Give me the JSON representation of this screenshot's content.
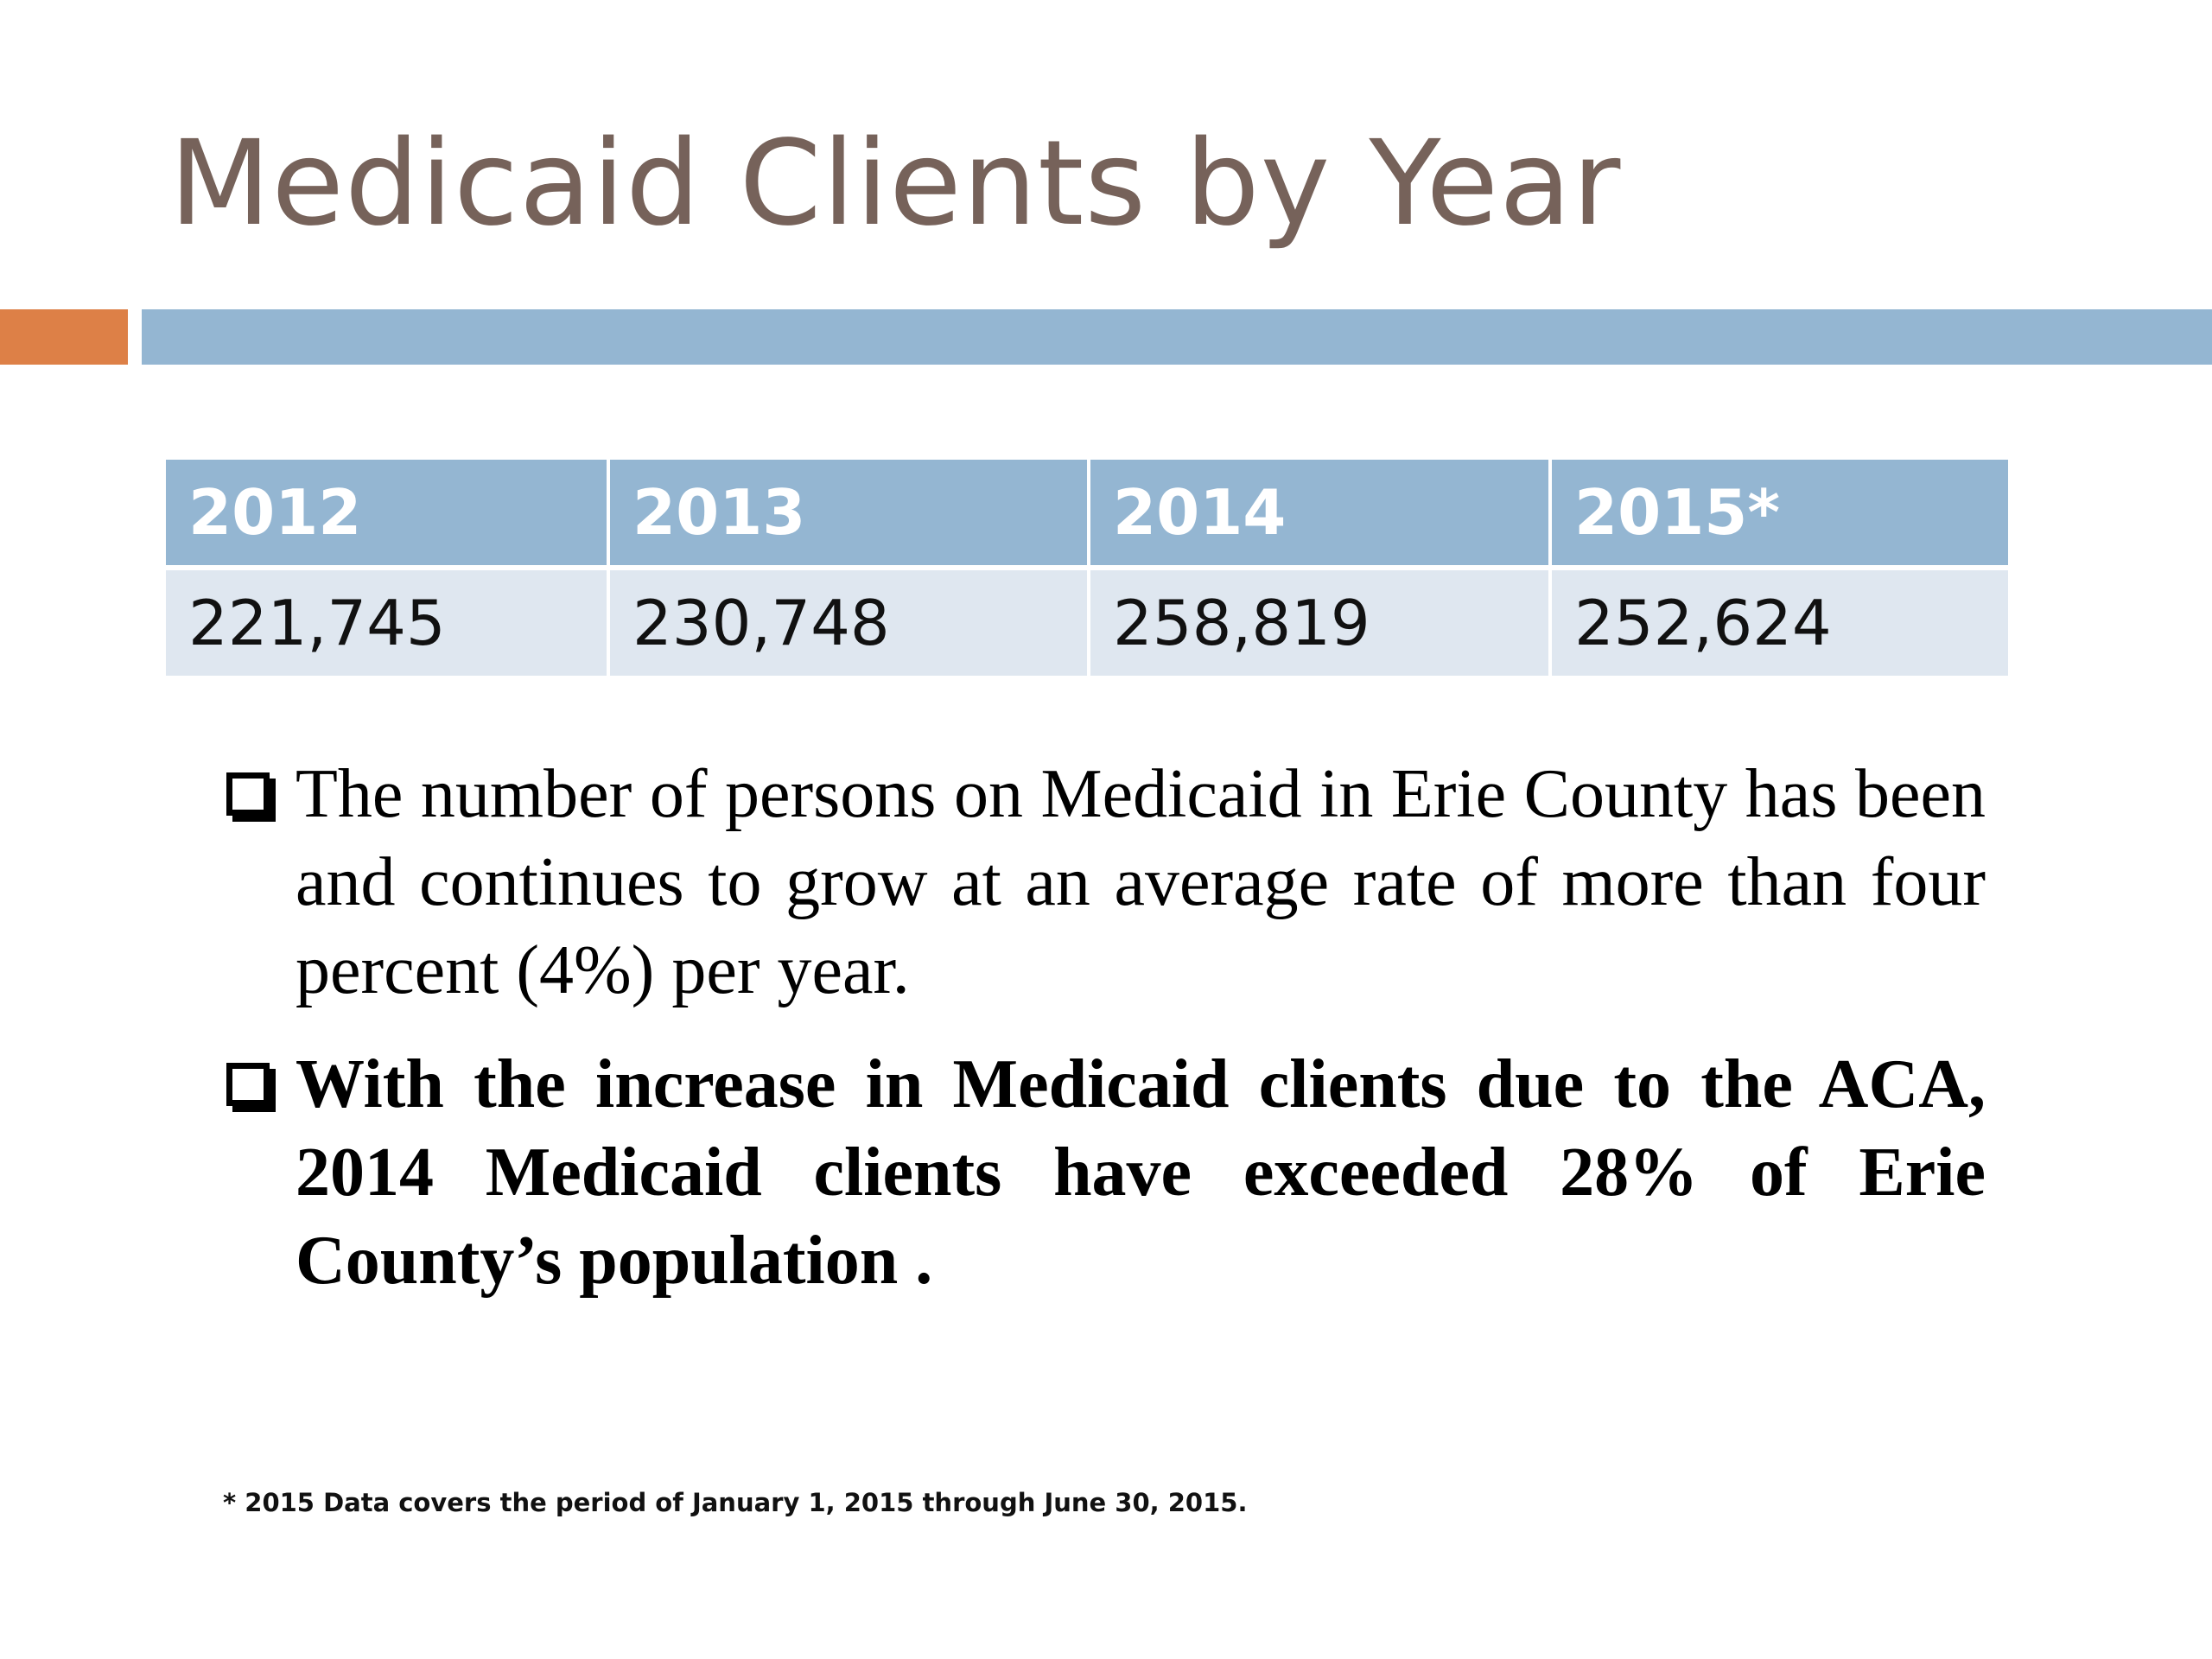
{
  "slide": {
    "title": "Medicaid Clients by Year",
    "colors": {
      "title": "#76625a",
      "accent_orange": "#dd8047",
      "accent_blue": "#94b6d2",
      "table_header_bg": "#94b6d2",
      "table_row_bg": "#dfe7f0"
    }
  },
  "table": {
    "headers": [
      "2012",
      "2013",
      "2014",
      "2015*"
    ],
    "rows": [
      [
        "221,745",
        "230,748",
        "258,819",
        "252,624"
      ]
    ]
  },
  "bullets": [
    {
      "icon": "checkbox-icon",
      "text": "The number of persons on Medicaid in Erie County has been and continues to grow at an average rate of more than four percent (4%) per year."
    },
    {
      "icon": "checkbox-icon",
      "text": "With the increase in Medicaid clients due to the ACA,  2014 Medicaid clients have exceeded 28% of Erie County’s population ."
    }
  ],
  "footnote": "* 2015 Data covers the period of January 1, 2015 through June 30, 2015."
}
